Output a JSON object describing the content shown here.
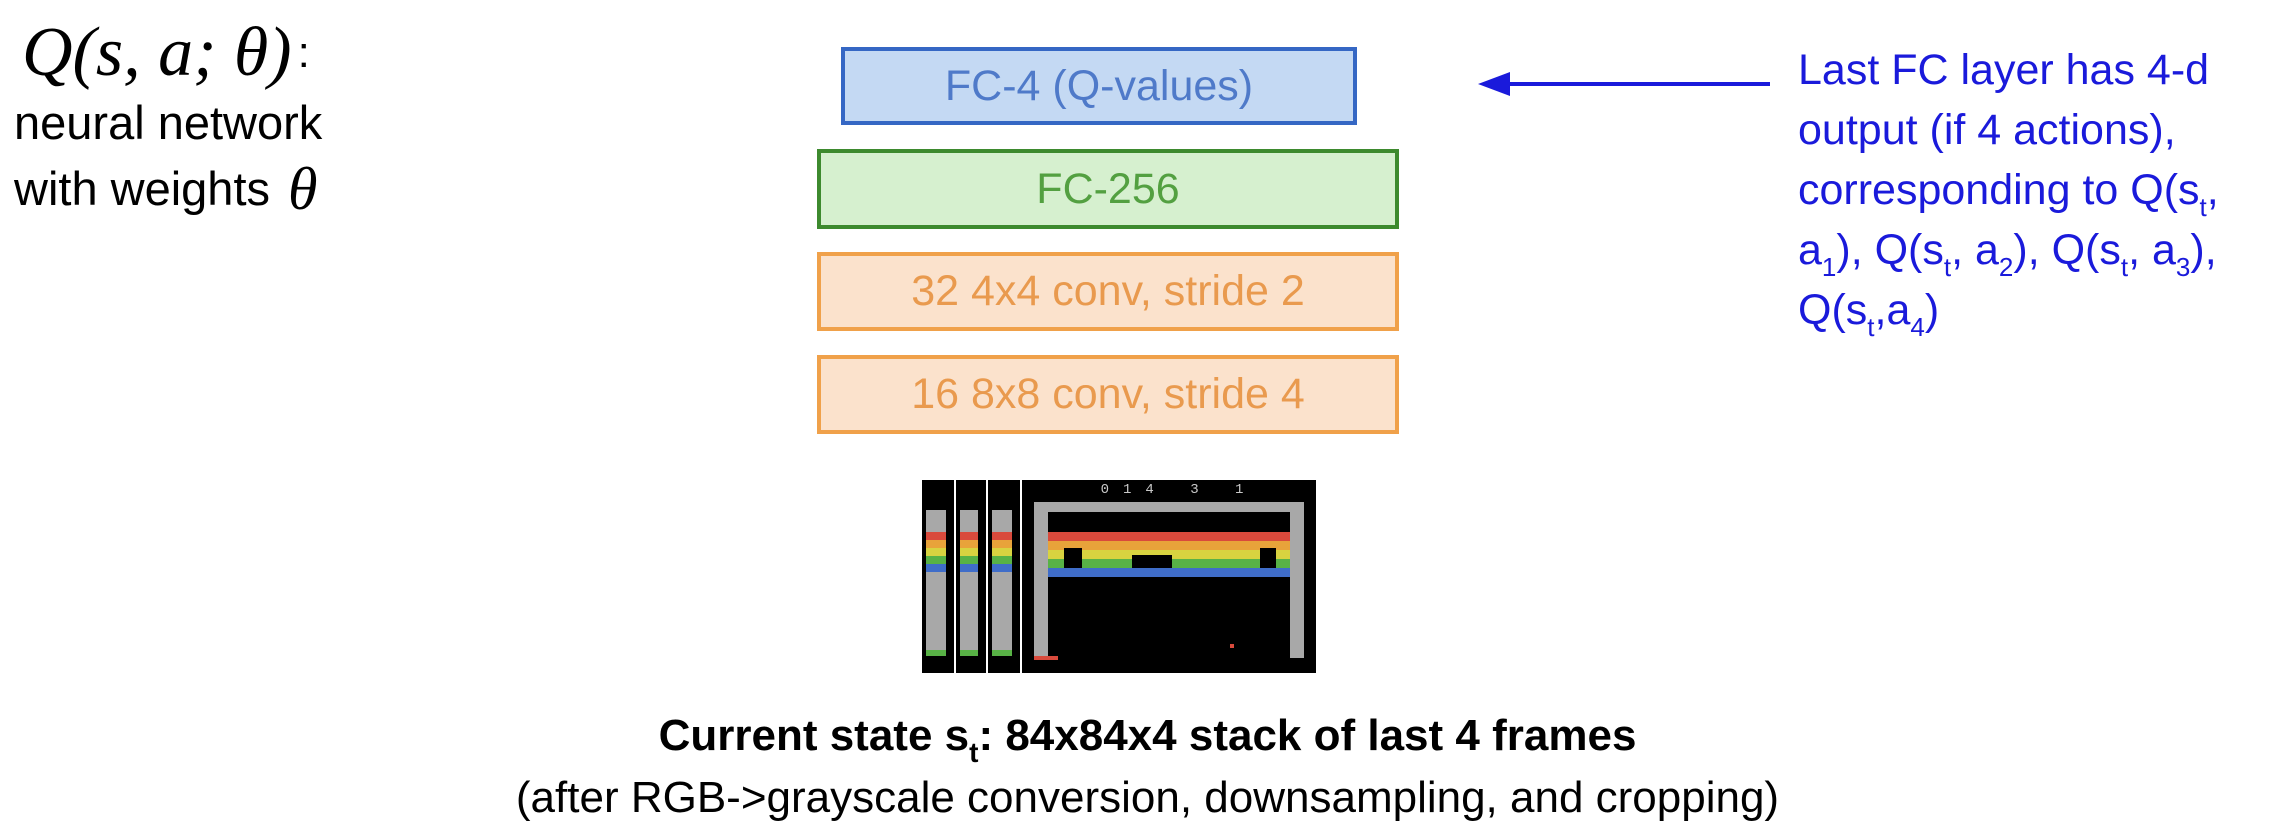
{
  "formula": {
    "q_expression": "Q(s, a; θ)",
    "colon": ":",
    "line1": "neural network",
    "line2": "with weights",
    "theta": "θ"
  },
  "layers": [
    {
      "label": "FC-4 (Q-values)"
    },
    {
      "label": "FC-256"
    },
    {
      "label": "32 4x4 conv, stride 2"
    },
    {
      "label": "16 8x8 conv, stride 4"
    }
  ],
  "annotation": {
    "l1": "Last FC layer has 4-d",
    "l2": "output (if 4 actions),",
    "l3_a": "corresponding to Q(s",
    "l3_sub_t": "t",
    "l3_b": ",",
    "l4_a": "a",
    "l4_sub_1": "1",
    "l4_b": "), Q(s",
    "l4_sub_t1": "t",
    "l4_c": ", a",
    "l4_sub_2": "2",
    "l4_d": "), Q(s",
    "l4_sub_t2": "t",
    "l4_e": ", a",
    "l4_sub_3": "3",
    "l4_f": "),",
    "l5_a": "Q(s",
    "l5_sub_t": "t",
    "l5_b": ",a",
    "l5_sub_4": "4",
    "l5_c": ")",
    "color": "#1a1adb"
  },
  "frames": {
    "count": 4,
    "score_text": "014 3 1"
  },
  "caption": {
    "main_a": "Current state s",
    "main_sub": "t",
    "main_b": ": 84x84x4 stack of last 4 frames",
    "sub": "(after RGB->grayscale conversion, downsampling, and cropping)"
  },
  "colors": {
    "fc4_fill": "#c4d9f3",
    "fc4_border": "#3567c4",
    "fc256_fill": "#d6f0cf",
    "fc256_border": "#3d8a2e",
    "conv_fill": "#fbe2cc",
    "conv_border": "#f0a14a",
    "arrow": "#1a1adb"
  }
}
